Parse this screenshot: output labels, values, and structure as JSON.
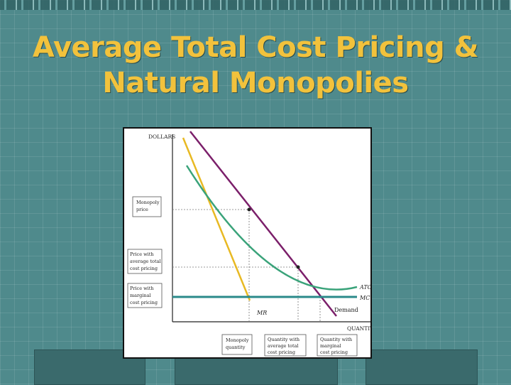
{
  "slide": {
    "title_line1": "Average Total Cost Pricing &",
    "title_line2": "Natural Monopolies"
  },
  "diagram": {
    "y_axis_label": "DOLLARS",
    "x_axis_label": "QUANTITY",
    "curves": {
      "atc": "ATC",
      "mc": "MC",
      "mr": "MR",
      "demand": "Demand"
    },
    "price_boxes": [
      [
        "Monopoly",
        "price"
      ],
      [
        "Price with",
        "average total",
        "cost pricing"
      ],
      [
        "Price with",
        "marginal",
        "cost pricing"
      ]
    ],
    "quantity_boxes": [
      [
        "Monopoly",
        "quantity"
      ],
      [
        "Quantity with",
        "average total",
        "cost pricing"
      ],
      [
        "Quantity with",
        "marginal",
        "cost pricing"
      ]
    ],
    "colors": {
      "demand": "#7b1f6a",
      "mr": "#e8b923",
      "atc": "#3aa37a",
      "mc": "#2a8a8a"
    }
  }
}
